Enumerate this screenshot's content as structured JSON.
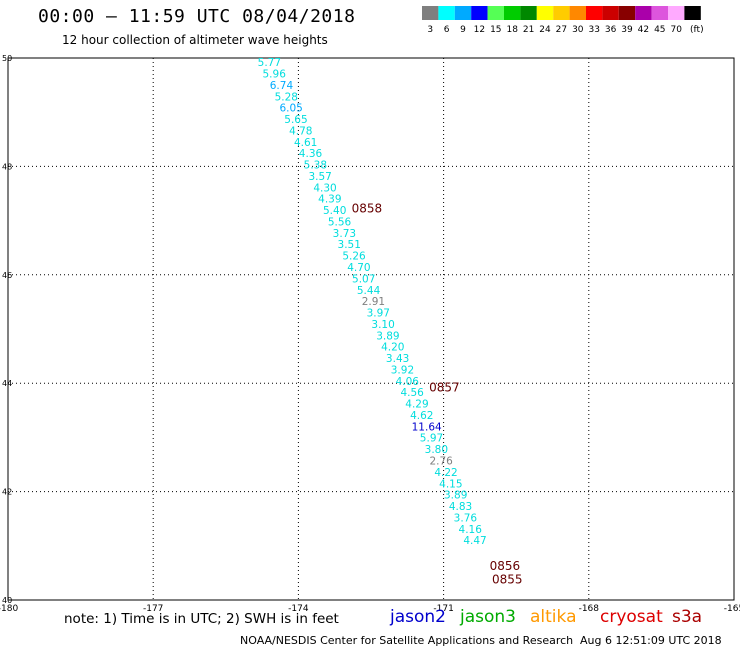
{
  "header": {
    "title": "00:00 – 11:59 UTC 08/04/2018",
    "subtitle": "12 hour collection of altimeter wave heights"
  },
  "legend": {
    "unit": "(ft)",
    "bins": [
      {
        "label": "3",
        "color": "#7f7f7f"
      },
      {
        "label": "6",
        "color": "#00ffff"
      },
      {
        "label": "9",
        "color": "#00aaff"
      },
      {
        "label": "12",
        "color": "#0000ff"
      },
      {
        "label": "15",
        "color": "#55ff55"
      },
      {
        "label": "18",
        "color": "#00cc00"
      },
      {
        "label": "21",
        "color": "#008800"
      },
      {
        "label": "24",
        "color": "#ffff00"
      },
      {
        "label": "27",
        "color": "#ffcc00"
      },
      {
        "label": "30",
        "color": "#ff8800"
      },
      {
        "label": "33",
        "color": "#ff0000"
      },
      {
        "label": "36",
        "color": "#cc0000"
      },
      {
        "label": "39",
        "color": "#880000"
      },
      {
        "label": "42",
        "color": "#aa00aa"
      },
      {
        "label": "45",
        "color": "#dd55dd"
      },
      {
        "label": "70",
        "color": "#ffaaff"
      },
      {
        "label": "",
        "color": "#000000"
      }
    ]
  },
  "map": {
    "lon_range": [
      -180,
      -165
    ],
    "lat_range": [
      40,
      50
    ],
    "lon_ticks": [
      "-180",
      "-177",
      "-174",
      "-171",
      "-168",
      "-165"
    ],
    "lon_tick_values": [
      -180,
      -177,
      -174,
      -171,
      -168,
      -165
    ],
    "lat_ticks": [
      "50",
      "48",
      "46",
      "44",
      "42",
      "40"
    ],
    "lat_tick_values": [
      50,
      48,
      46,
      44,
      42,
      40
    ],
    "grid": "dotted"
  },
  "track": {
    "points": [
      {
        "lon": -174.6,
        "lat": 49.85,
        "label": "5.77",
        "color": "#00dddd"
      },
      {
        "lon": -174.5,
        "lat": 49.64,
        "label": "5.96",
        "color": "#00dddd"
      },
      {
        "lon": -174.35,
        "lat": 49.43,
        "label": "6.74",
        "color": "#00aaff"
      },
      {
        "lon": -174.25,
        "lat": 49.22,
        "label": "5.28",
        "color": "#00dddd"
      },
      {
        "lon": -174.15,
        "lat": 49.01,
        "label": "6.05",
        "color": "#00aaff"
      },
      {
        "lon": -174.05,
        "lat": 48.8,
        "label": "5.65",
        "color": "#00dddd"
      },
      {
        "lon": -173.95,
        "lat": 48.59,
        "label": "4.78",
        "color": "#00dddd"
      },
      {
        "lon": -173.85,
        "lat": 48.38,
        "label": "4.61",
        "color": "#00dddd"
      },
      {
        "lon": -173.75,
        "lat": 48.17,
        "label": "4.36",
        "color": "#00dddd"
      },
      {
        "lon": -173.65,
        "lat": 47.96,
        "label": "5.38",
        "color": "#00dddd"
      },
      {
        "lon": -173.55,
        "lat": 47.75,
        "label": "3.57",
        "color": "#00dddd"
      },
      {
        "lon": -173.45,
        "lat": 47.54,
        "label": "4.30",
        "color": "#00dddd"
      },
      {
        "lon": -173.35,
        "lat": 47.33,
        "label": "4.39",
        "color": "#00dddd"
      },
      {
        "lon": -173.25,
        "lat": 47.12,
        "label": "5.40",
        "color": "#00dddd"
      },
      {
        "lon": -173.15,
        "lat": 46.91,
        "label": "5.56",
        "color": "#00dddd"
      },
      {
        "lon": -173.05,
        "lat": 46.7,
        "label": "3.73",
        "color": "#00dddd"
      },
      {
        "lon": -172.95,
        "lat": 46.49,
        "label": "3.51",
        "color": "#00dddd"
      },
      {
        "lon": -172.85,
        "lat": 46.28,
        "label": "5.26",
        "color": "#00dddd"
      },
      {
        "lon": -172.75,
        "lat": 46.07,
        "label": "4.70",
        "color": "#00dddd"
      },
      {
        "lon": -172.65,
        "lat": 45.86,
        "label": "5.07",
        "color": "#00dddd"
      },
      {
        "lon": -172.55,
        "lat": 45.65,
        "label": "5.44",
        "color": "#00dddd"
      },
      {
        "lon": -172.45,
        "lat": 45.44,
        "label": "2.91",
        "color": "#7f7f7f"
      },
      {
        "lon": -172.35,
        "lat": 45.23,
        "label": "3.97",
        "color": "#00dddd"
      },
      {
        "lon": -172.25,
        "lat": 45.02,
        "label": "3.10",
        "color": "#00dddd"
      },
      {
        "lon": -172.15,
        "lat": 44.81,
        "label": "3.89",
        "color": "#00dddd"
      },
      {
        "lon": -172.05,
        "lat": 44.6,
        "label": "4.20",
        "color": "#00dddd"
      },
      {
        "lon": -171.95,
        "lat": 44.39,
        "label": "3.43",
        "color": "#00dddd"
      },
      {
        "lon": -171.85,
        "lat": 44.18,
        "label": "3.92",
        "color": "#00dddd"
      },
      {
        "lon": -171.75,
        "lat": 43.97,
        "label": "4.06",
        "color": "#00dddd"
      },
      {
        "lon": -171.65,
        "lat": 43.76,
        "label": "4.56",
        "color": "#00dddd"
      },
      {
        "lon": -171.55,
        "lat": 43.55,
        "label": "4.29",
        "color": "#00dddd"
      },
      {
        "lon": -171.45,
        "lat": 43.34,
        "label": "4.62",
        "color": "#00dddd"
      },
      {
        "lon": -171.35,
        "lat": 43.13,
        "label": "11.64",
        "color": "#0000cc"
      },
      {
        "lon": -171.25,
        "lat": 42.92,
        "label": "5.97",
        "color": "#00dddd"
      },
      {
        "lon": -171.15,
        "lat": 42.71,
        "label": "3.80",
        "color": "#00dddd"
      },
      {
        "lon": -171.05,
        "lat": 42.5,
        "label": "2.76",
        "color": "#7f7f7f"
      },
      {
        "lon": -170.95,
        "lat": 42.29,
        "label": "4.22",
        "color": "#00dddd"
      },
      {
        "lon": -170.85,
        "lat": 42.08,
        "label": "4.15",
        "color": "#00dddd"
      },
      {
        "lon": -170.75,
        "lat": 41.87,
        "label": "3.89",
        "color": "#00dddd"
      },
      {
        "lon": -170.65,
        "lat": 41.66,
        "label": "4.83",
        "color": "#00dddd"
      },
      {
        "lon": -170.55,
        "lat": 41.45,
        "label": "3.76",
        "color": "#00dddd"
      },
      {
        "lon": -170.45,
        "lat": 41.24,
        "label": "4.16",
        "color": "#00dddd"
      },
      {
        "lon": -170.35,
        "lat": 41.03,
        "label": "4.47",
        "color": "#00dddd"
      }
    ],
    "time_labels": [
      {
        "lon": -172.9,
        "lat": 47.15,
        "label": "0858"
      },
      {
        "lon": -171.3,
        "lat": 43.85,
        "label": "0857"
      },
      {
        "lon": -170.05,
        "lat": 40.55,
        "label": "0856"
      },
      {
        "lon": -170.0,
        "lat": 40.3,
        "label": "0855"
      }
    ],
    "time_label_color": "#660000"
  },
  "footer": {
    "note": "note: 1) Time is in UTC; 2) SWH is in feet",
    "satellites": [
      {
        "name": "jason2",
        "color": "#0000cc"
      },
      {
        "name": "jason3",
        "color": "#00aa00"
      },
      {
        "name": "altika",
        "color": "#ff9900"
      },
      {
        "name": "cryosat",
        "color": "#dd0000"
      },
      {
        "name": "s3a",
        "color": "#aa0000"
      }
    ],
    "center": "NOAA/NESDIS Center for Satellite Applications and Research",
    "timestamp": "Aug  6 12:51:09 UTC 2018"
  }
}
